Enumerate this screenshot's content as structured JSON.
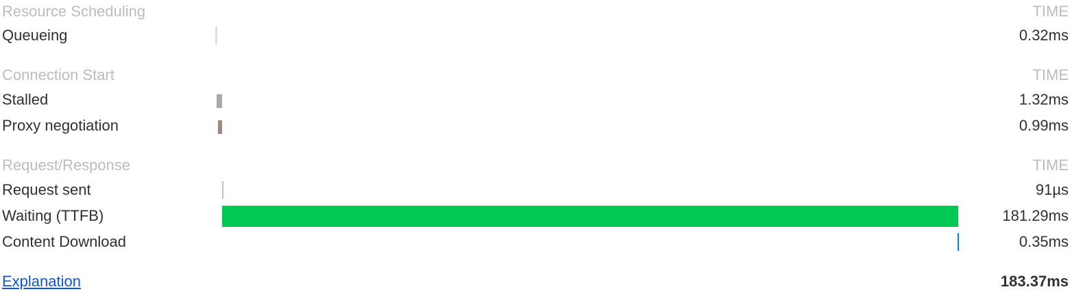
{
  "sections": {
    "resource_scheduling": {
      "title": "Resource Scheduling",
      "time_header": "TIME",
      "rows": [
        {
          "label": "Queueing",
          "time": "0.32ms",
          "color": "#dedede"
        }
      ]
    },
    "connection_start": {
      "title": "Connection Start",
      "time_header": "TIME",
      "rows": [
        {
          "label": "Stalled",
          "time": "1.32ms",
          "color": "#a9a9a9"
        },
        {
          "label": "Proxy negotiation",
          "time": "0.99ms",
          "color": "#9b8a85"
        }
      ]
    },
    "request_response": {
      "title": "Request/Response",
      "time_header": "TIME",
      "rows": [
        {
          "label": "Request sent",
          "time": "91µs",
          "color": "#b0c4cc"
        },
        {
          "label": "Waiting (TTFB)",
          "time": "181.29ms",
          "color": "#00c853"
        },
        {
          "label": "Content Download",
          "time": "0.35ms",
          "color": "#0a84d9"
        }
      ]
    }
  },
  "footer": {
    "explanation_link": "Explanation",
    "total_time": "183.37ms"
  }
}
